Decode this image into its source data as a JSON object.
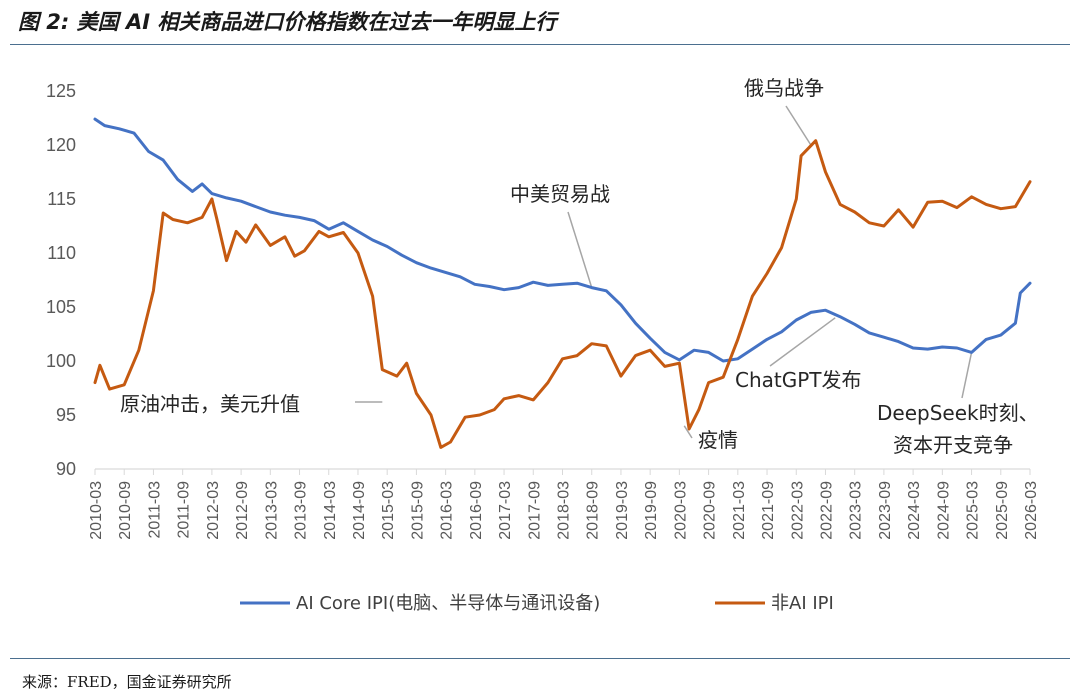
{
  "figure": {
    "title": "图 2: 美国 AI 相关商品进口价格指数在过去一年明显上行",
    "source": "来源：FRED，国金证券研究所"
  },
  "colors": {
    "series1": "#4472c4",
    "series2": "#c55a11",
    "axis": "#d9d9d9",
    "rule": "#4b6f8f"
  },
  "chart_data": {
    "type": "line",
    "ylim": [
      90,
      125
    ],
    "yticks": [
      90,
      95,
      100,
      105,
      110,
      115,
      120,
      125
    ],
    "xlim": [
      "2010-03",
      "2026-03"
    ],
    "xticks": [
      "2010-03",
      "2010-09",
      "2011-03",
      "2011-09",
      "2012-03",
      "2012-09",
      "2013-03",
      "2013-09",
      "2014-03",
      "2014-09",
      "2015-03",
      "2015-09",
      "2016-03",
      "2016-09",
      "2017-03",
      "2017-09",
      "2018-03",
      "2018-09",
      "2019-03",
      "2019-09",
      "2020-03",
      "2020-09",
      "2021-03",
      "2021-09",
      "2022-03",
      "2022-09",
      "2023-03",
      "2023-09",
      "2024-03",
      "2024-09",
      "2025-03",
      "2025-09",
      "2026-03"
    ],
    "legend_position": "bottom",
    "series": [
      {
        "name": "AI Core IPI(电脑、半导体与通讯设备)",
        "color": "#4472c4",
        "points": [
          [
            "2010-03",
            122.4
          ],
          [
            "2010-05",
            121.8
          ],
          [
            "2010-08",
            121.5
          ],
          [
            "2010-11",
            121.1
          ],
          [
            "2011-02",
            119.4
          ],
          [
            "2011-05",
            118.6
          ],
          [
            "2011-08",
            116.8
          ],
          [
            "2011-11",
            115.7
          ],
          [
            "2012-01",
            116.4
          ],
          [
            "2012-03",
            115.5
          ],
          [
            "2012-06",
            115.1
          ],
          [
            "2012-09",
            114.8
          ],
          [
            "2012-12",
            114.3
          ],
          [
            "2013-03",
            113.8
          ],
          [
            "2013-06",
            113.5
          ],
          [
            "2013-09",
            113.3
          ],
          [
            "2013-12",
            113.0
          ],
          [
            "2014-03",
            112.2
          ],
          [
            "2014-06",
            112.8
          ],
          [
            "2014-09",
            112.0
          ],
          [
            "2014-12",
            111.2
          ],
          [
            "2015-03",
            110.6
          ],
          [
            "2015-06",
            109.8
          ],
          [
            "2015-09",
            109.1
          ],
          [
            "2015-12",
            108.6
          ],
          [
            "2016-03",
            108.2
          ],
          [
            "2016-06",
            107.8
          ],
          [
            "2016-09",
            107.1
          ],
          [
            "2016-12",
            106.9
          ],
          [
            "2017-03",
            106.6
          ],
          [
            "2017-06",
            106.8
          ],
          [
            "2017-09",
            107.3
          ],
          [
            "2017-12",
            107.0
          ],
          [
            "2018-03",
            107.1
          ],
          [
            "2018-06",
            107.2
          ],
          [
            "2018-09",
            106.8
          ],
          [
            "2018-12",
            106.5
          ],
          [
            "2019-03",
            105.2
          ],
          [
            "2019-06",
            103.5
          ],
          [
            "2019-09",
            102.1
          ],
          [
            "2019-12",
            100.8
          ],
          [
            "2020-03",
            100.1
          ],
          [
            "2020-06",
            101.0
          ],
          [
            "2020-09",
            100.8
          ],
          [
            "2020-12",
            100.0
          ],
          [
            "2021-03",
            100.2
          ],
          [
            "2021-06",
            101.1
          ],
          [
            "2021-09",
            102.0
          ],
          [
            "2021-12",
            102.7
          ],
          [
            "2022-03",
            103.8
          ],
          [
            "2022-06",
            104.5
          ],
          [
            "2022-09",
            104.7
          ],
          [
            "2022-12",
            104.1
          ],
          [
            "2023-03",
            103.4
          ],
          [
            "2023-06",
            102.6
          ],
          [
            "2023-09",
            102.2
          ],
          [
            "2023-12",
            101.8
          ],
          [
            "2024-03",
            101.2
          ],
          [
            "2024-06",
            101.1
          ],
          [
            "2024-09",
            101.3
          ],
          [
            "2024-12",
            101.2
          ],
          [
            "2025-03",
            100.8
          ],
          [
            "2025-06",
            102.0
          ],
          [
            "2025-09",
            102.4
          ],
          [
            "2025-12",
            103.5
          ],
          [
            "2026-01",
            106.3
          ],
          [
            "2026-03",
            107.2
          ]
        ]
      },
      {
        "name": "非AI IPI",
        "color": "#c55a11",
        "points": [
          [
            "2010-03",
            98.0
          ],
          [
            "2010-04",
            99.6
          ],
          [
            "2010-06",
            97.4
          ],
          [
            "2010-09",
            97.8
          ],
          [
            "2010-12",
            101.0
          ],
          [
            "2011-03",
            106.5
          ],
          [
            "2011-05",
            113.7
          ],
          [
            "2011-07",
            113.1
          ],
          [
            "2011-10",
            112.8
          ],
          [
            "2012-01",
            113.3
          ],
          [
            "2012-03",
            115.0
          ],
          [
            "2012-04",
            113.2
          ],
          [
            "2012-06",
            109.3
          ],
          [
            "2012-08",
            112.0
          ],
          [
            "2012-10",
            111.0
          ],
          [
            "2012-12",
            112.6
          ],
          [
            "2013-03",
            110.7
          ],
          [
            "2013-06",
            111.5
          ],
          [
            "2013-08",
            109.7
          ],
          [
            "2013-10",
            110.2
          ],
          [
            "2014-01",
            112.0
          ],
          [
            "2014-03",
            111.5
          ],
          [
            "2014-06",
            111.9
          ],
          [
            "2014-09",
            110.0
          ],
          [
            "2014-12",
            106.0
          ],
          [
            "2015-02",
            99.2
          ],
          [
            "2015-05",
            98.6
          ],
          [
            "2015-07",
            99.8
          ],
          [
            "2015-09",
            97.0
          ],
          [
            "2015-12",
            95.0
          ],
          [
            "2016-02",
            92.0
          ],
          [
            "2016-04",
            92.5
          ],
          [
            "2016-07",
            94.8
          ],
          [
            "2016-10",
            95.0
          ],
          [
            "2017-01",
            95.5
          ],
          [
            "2017-03",
            96.5
          ],
          [
            "2017-06",
            96.8
          ],
          [
            "2017-09",
            96.4
          ],
          [
            "2017-12",
            98.0
          ],
          [
            "2018-03",
            100.2
          ],
          [
            "2018-06",
            100.5
          ],
          [
            "2018-09",
            101.6
          ],
          [
            "2018-12",
            101.4
          ],
          [
            "2019-03",
            98.6
          ],
          [
            "2019-06",
            100.5
          ],
          [
            "2019-09",
            101.0
          ],
          [
            "2019-12",
            99.5
          ],
          [
            "2020-03",
            99.8
          ],
          [
            "2020-05",
            93.7
          ],
          [
            "2020-07",
            95.5
          ],
          [
            "2020-09",
            98.0
          ],
          [
            "2020-12",
            98.5
          ],
          [
            "2021-03",
            102.0
          ],
          [
            "2021-06",
            106.0
          ],
          [
            "2021-09",
            108.1
          ],
          [
            "2021-12",
            110.5
          ],
          [
            "2022-03",
            115.0
          ],
          [
            "2022-04",
            119.0
          ],
          [
            "2022-07",
            120.4
          ],
          [
            "2022-09",
            117.5
          ],
          [
            "2022-12",
            114.5
          ],
          [
            "2023-03",
            113.8
          ],
          [
            "2023-06",
            112.8
          ],
          [
            "2023-09",
            112.5
          ],
          [
            "2023-12",
            114.0
          ],
          [
            "2024-03",
            112.4
          ],
          [
            "2024-06",
            114.7
          ],
          [
            "2024-09",
            114.8
          ],
          [
            "2024-12",
            114.2
          ],
          [
            "2025-03",
            115.2
          ],
          [
            "2025-06",
            114.5
          ],
          [
            "2025-09",
            114.1
          ],
          [
            "2025-12",
            114.3
          ],
          [
            "2026-03",
            116.6
          ]
        ]
      }
    ],
    "annotations": [
      {
        "text": "俄乌战争",
        "date": "2022-06",
        "value": 120.0
      },
      {
        "text": "中美贸易战",
        "date": "2018-09",
        "value": 106.8
      },
      {
        "text": "原油冲击，美元升值",
        "date": "2015-02",
        "value": 96.2
      },
      {
        "text": "疫情",
        "date": "2020-04",
        "value": 94.0
      },
      {
        "text": "ChatGPT发布",
        "date": "2022-11",
        "value": 104.0
      },
      {
        "text": "DeepSeek时刻、",
        "date": "2025-03",
        "value": 100.8
      },
      {
        "text": "资本开支竞争",
        "date": "2025-03",
        "value": 100.8
      }
    ]
  }
}
